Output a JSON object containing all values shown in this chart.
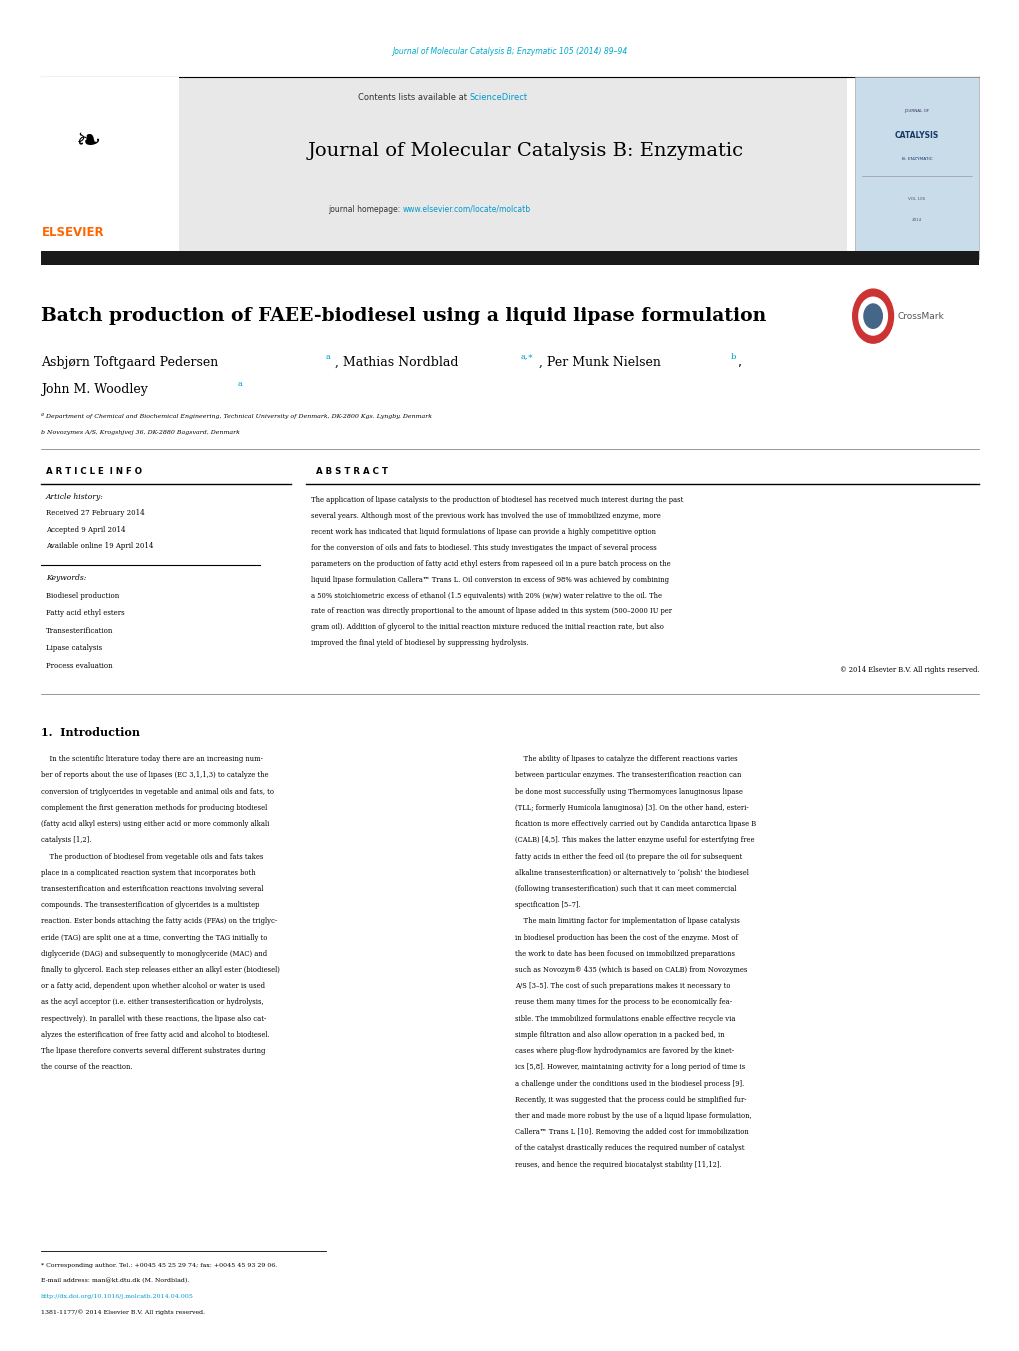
{
  "page_width": 10.2,
  "page_height": 13.51,
  "background_color": "#ffffff",
  "top_header_text": "Journal of Molecular Catalysis B; Enzymatic 105 (2014) 89–94",
  "top_header_color": "#00aacc",
  "journal_name": "Journal of Molecular Catalysis B: Enzymatic",
  "contents_text": "Contents lists available at",
  "science_direct": "ScienceDirect",
  "journal_homepage_text": "journal homepage: ",
  "journal_url": "www.elsevier.com/locate/molcatb",
  "elsevier_color": "#ff6600",
  "link_color": "#0099cc",
  "header_bg": "#e8e8e8",
  "dark_bar_color": "#1a1a1a",
  "article_title": "Batch production of FAEE-biodiesel using a liquid lipase formulation",
  "authors_line1": "Asbjørn Toftgaard Pedersen",
  "authors_line1_mid": ", Mathias Nordblad",
  "authors_line1_end": ", Per Munk Nielsen",
  "authors_line2": "John M. Woodley",
  "affil_a": "ª Department of Chemical and Biochemical Engineering, Technical University of Denmark, DK-2800 Kgs. Lyngby, Denmark",
  "affil_b": "b Novozymes A/S, Krogshjvej 36, DK-2880 Bagsvard, Denmark",
  "article_info_title": "A R T I C L E  I N F O",
  "article_history_title": "Article history:",
  "received": "Received 27 February 2014",
  "accepted": "Accepted 9 April 2014",
  "available": "Available online 19 April 2014",
  "keywords_title": "Keywords:",
  "keywords": [
    "Biodiesel production",
    "Fatty acid ethyl esters",
    "Transesterification",
    "Lipase catalysis",
    "Process evaluation"
  ],
  "abstract_title": "A B S T R A C T",
  "copyright": "© 2014 Elsevier B.V. All rights reserved.",
  "intro_heading": "1.  Introduction",
  "footnote_star": "* Corresponding author. Tel.: +0045 45 25 29 74; fax: +0045 45 93 29 06.",
  "footnote_email": "E-mail address: man@kt.dtu.dk (M. Nordblad).",
  "footnote_doi": "http://dx.doi.org/10.1016/j.molcatb.2014.04.005",
  "footnote_issn": "1381-1177/© 2014 Elsevier B.V. All rights reserved."
}
